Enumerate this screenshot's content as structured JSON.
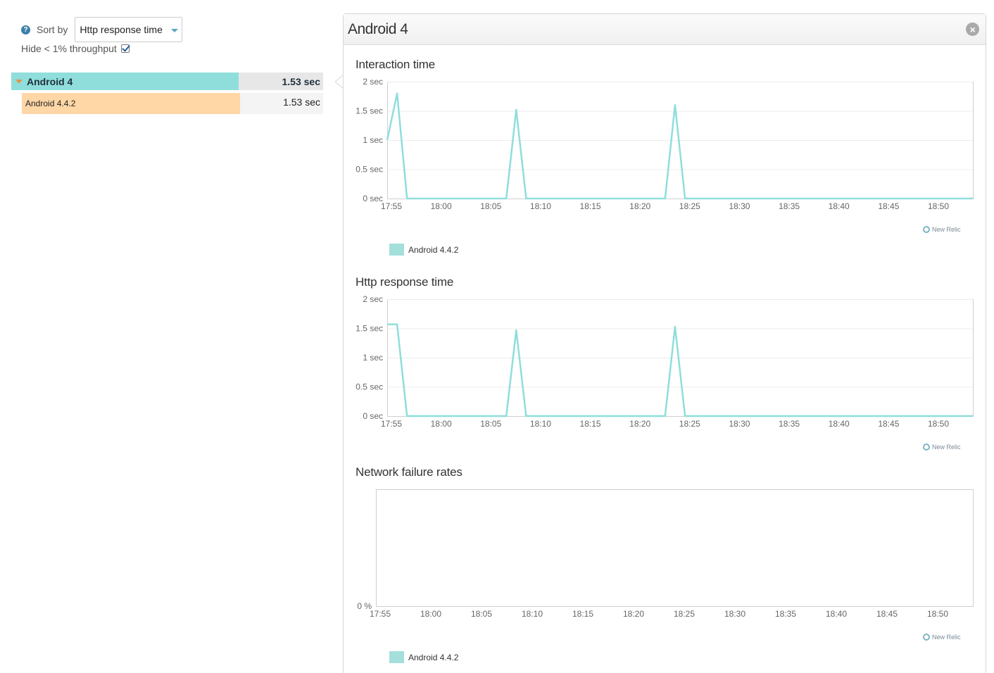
{
  "filters": {
    "help_icon": "question-mark",
    "sort_label": "Sort by",
    "sort_selected": "Http response time",
    "hide_label": "Hide < 1% throughput",
    "hide_checked": true
  },
  "tree": {
    "group": {
      "label": "Android 4",
      "value": "1.53 sec"
    },
    "items": [
      {
        "label": "Android 4.4.2",
        "value": "1.53 sec"
      }
    ]
  },
  "panel": {
    "title": "Android 4",
    "close_icon": "close-icon"
  },
  "colors": {
    "series": "#8fdedb",
    "group_row": "#8fdedb",
    "item_row": "#ffd6a6"
  },
  "watermark": "New Relic",
  "chart_data": [
    {
      "type": "line",
      "title": "Interaction time",
      "x_labels": [
        "17:55",
        "18:00",
        "18:05",
        "18:10",
        "18:15",
        "18:20",
        "18:25",
        "18:30",
        "18:35",
        "18:40",
        "18:45",
        "18:50"
      ],
      "y_ticks": [
        "0 sec",
        "0.5 sec",
        "1 sec",
        "1.5 sec",
        "2 sec"
      ],
      "ylim": [
        0,
        2
      ],
      "x_range": [
        0,
        59
      ],
      "series": [
        {
          "name": "Android 4.4.2",
          "x": [
            0,
            1,
            2,
            12,
            13,
            14,
            28,
            29,
            30,
            59
          ],
          "values": [
            1.0,
            1.8,
            0,
            0,
            1.52,
            0,
            0,
            1.6,
            0,
            0
          ]
        }
      ],
      "legend": [
        "Android 4.4.2"
      ],
      "grid": true
    },
    {
      "type": "line",
      "title": "Http response time",
      "x_labels": [
        "17:55",
        "18:00",
        "18:05",
        "18:10",
        "18:15",
        "18:20",
        "18:25",
        "18:30",
        "18:35",
        "18:40",
        "18:45",
        "18:50"
      ],
      "y_ticks": [
        "0 sec",
        "0.5 sec",
        "1 sec",
        "1.5 sec",
        "2 sec"
      ],
      "ylim": [
        0,
        2
      ],
      "x_range": [
        0,
        59
      ],
      "series": [
        {
          "name": "Android 4.4.2",
          "x": [
            0,
            1,
            2,
            12,
            13,
            14,
            28,
            29,
            30,
            59
          ],
          "values": [
            1.57,
            1.57,
            0,
            0,
            1.47,
            0,
            0,
            1.53,
            0,
            0
          ]
        }
      ],
      "grid": true
    },
    {
      "type": "line",
      "title": "Network failure rates",
      "x_labels": [
        "17:55",
        "18:00",
        "18:05",
        "18:10",
        "18:15",
        "18:20",
        "18:25",
        "18:30",
        "18:35",
        "18:40",
        "18:45",
        "18:50"
      ],
      "y_ticks": [
        "0 %"
      ],
      "ylim": [
        0,
        1
      ],
      "x_range": [
        0,
        59
      ],
      "series": [],
      "legend": [
        "Android 4.4.2"
      ],
      "grid": false
    }
  ]
}
